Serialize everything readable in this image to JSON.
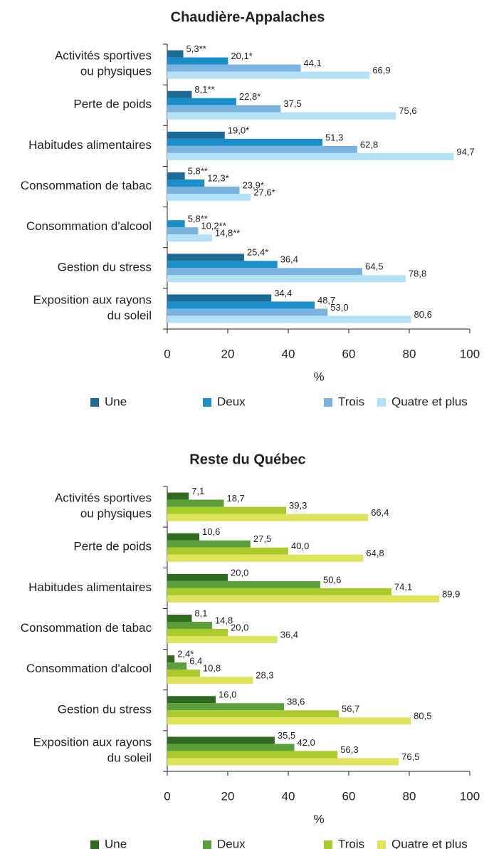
{
  "chart_data": [
    {
      "type": "hbar",
      "title": "Chaudière-Appalaches",
      "xlabel": "%",
      "categories": [
        "Activités sportives\nou physiques",
        "Perte de poids",
        "Habitudes alimentaires",
        "Consommation de tabac",
        "Consommation d'alcool",
        "Gestion du stress",
        "Exposition aux rayons\ndu soleil"
      ],
      "xlim": [
        0,
        100
      ],
      "xticks": [
        0,
        20,
        40,
        60,
        80,
        100
      ],
      "legend": "bottom",
      "series": [
        {
          "name": "Une",
          "color": "#1b6b95",
          "values": [
            5.3,
            8.1,
            19.0,
            5.8,
            null,
            25.4,
            34.4
          ],
          "value_labels": [
            "5,3**",
            "8,1**",
            "19,0*",
            "5,8**",
            null,
            "25,4*",
            "34,4"
          ]
        },
        {
          "name": "Deux",
          "color": "#1a8ec8",
          "values": [
            20.1,
            22.8,
            51.3,
            12.3,
            5.8,
            36.4,
            48.7
          ],
          "value_labels": [
            "20,1*",
            "22,8*",
            "51,3",
            "12,3*",
            "5,8**",
            "36,4",
            "48,7"
          ]
        },
        {
          "name": "Trois",
          "color": "#79b3de",
          "values": [
            44.1,
            37.5,
            62.8,
            23.9,
            10.2,
            64.5,
            53.0
          ],
          "value_labels": [
            "44,1",
            "37,5",
            "62,8",
            "23,9*",
            "10,2**",
            "64,5",
            "53,0"
          ]
        },
        {
          "name": "Quatre et plus",
          "color": "#b3e1f6",
          "values": [
            66.9,
            75.6,
            94.7,
            27.6,
            14.8,
            78.8,
            80.6
          ],
          "value_labels": [
            "66,9",
            "75,6",
            "94,7",
            "27,6*",
            "14,8**",
            "78,8",
            "80,6"
          ]
        }
      ]
    },
    {
      "type": "hbar",
      "title": "Reste du Québec",
      "xlabel": "%",
      "categories": [
        "Activités sportives\nou physiques",
        "Perte de poids",
        "Habitudes alimentaires",
        "Consommation de tabac",
        "Consommation d'alcool",
        "Gestion du stress",
        "Exposition aux rayons\ndu soleil"
      ],
      "xlim": [
        0,
        100
      ],
      "xticks": [
        0,
        20,
        40,
        60,
        80,
        100
      ],
      "legend": "bottom",
      "series": [
        {
          "name": "Une",
          "color": "#2e6a1f",
          "values": [
            7.1,
            10.6,
            20.0,
            8.1,
            2.4,
            16.0,
            35.5
          ],
          "value_labels": [
            "7,1",
            "10,6",
            "20,0",
            "8,1",
            "2,4*",
            "16,0",
            "35,5"
          ]
        },
        {
          "name": "Deux",
          "color": "#5b9f3a",
          "values": [
            18.7,
            27.5,
            50.6,
            14.8,
            6.4,
            38.6,
            42.0
          ],
          "value_labels": [
            "18,7",
            "27,5",
            "50,6",
            "14,8",
            "6,4",
            "38,6",
            "42,0"
          ]
        },
        {
          "name": "Trois",
          "color": "#a9cb2b",
          "values": [
            39.3,
            40.0,
            74.1,
            20.0,
            10.8,
            56.7,
            56.3
          ],
          "value_labels": [
            "39,3",
            "40,0",
            "74,1",
            "20,0",
            "10,8",
            "56,7",
            "56,3"
          ]
        },
        {
          "name": "Quatre et plus",
          "color": "#dee35b",
          "values": [
            66.4,
            64.8,
            89.9,
            36.4,
            28.3,
            80.5,
            76.5
          ],
          "value_labels": [
            "66,4",
            "64,8",
            "89,9",
            "36,4",
            "28,3",
            "80,5",
            "76,5"
          ]
        }
      ]
    }
  ]
}
